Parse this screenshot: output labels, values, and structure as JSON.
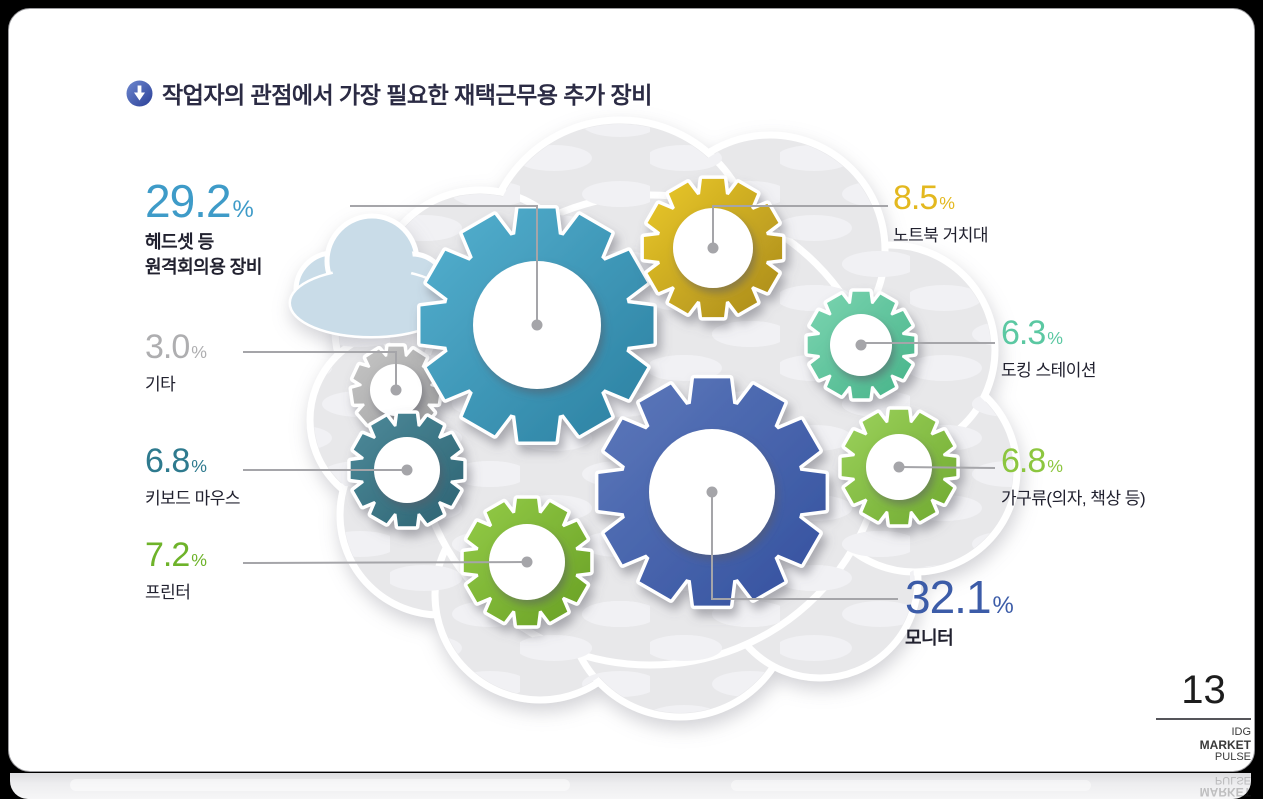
{
  "page": {
    "number": "13",
    "title": "작업자의 관점에서 가장 필요한 재택근무용 추가 장비",
    "brand_lines": [
      "IDG",
      "MARKET",
      "PULSE"
    ],
    "title_color": "#2b2b44",
    "title_icon": "down-arrow-in-circle"
  },
  "colors": {
    "connector": "#a5a5a9",
    "cloud_fill": "#e8e8ea",
    "cloud_pattern": "#f1f1f4",
    "cloud_outline": "#ffffff",
    "small_cloud_fill": "#c9dce8",
    "card_background": "#ffffff"
  },
  "chart_data": {
    "type": "pictorial-gears",
    "title": "작업자의 관점에서 가장 필요한 재택근무용 추가 장비",
    "unit": "%",
    "legend_position": "callouts-around-cloud",
    "items": [
      {
        "label": "헤드셋 등 원격회의용 장비",
        "label_lines": [
          "헤드셋 등",
          "원격회의용 장비"
        ],
        "value": 29.2,
        "value_display": "29.2",
        "color": "#3e9bc8",
        "gear_color": "#55b1d0",
        "gear_dark": "#2a7fa0",
        "emphasis": true
      },
      {
        "label": "기타",
        "value": 3.0,
        "value_display": "3.0",
        "color": "#aeaeb0",
        "gear_color": "#c6c6c6",
        "gear_dark": "#9e9e9e",
        "emphasis": false
      },
      {
        "label": "키보드 마우스",
        "value": 6.8,
        "value_display": "6.8",
        "color": "#2e7a8e",
        "gear_color": "#4d8a9a",
        "gear_dark": "#2d6372",
        "emphasis": false
      },
      {
        "label": "프린터",
        "value": 7.2,
        "value_display": "7.2",
        "color": "#6eb32a",
        "gear_color": "#94cc48",
        "gear_dark": "#689f24",
        "emphasis": false
      },
      {
        "label": "노트북 거치대",
        "value": 8.5,
        "value_display": "8.5",
        "color": "#e3b81f",
        "gear_color": "#ecca28",
        "gear_dark": "#a8891c",
        "emphasis": false
      },
      {
        "label": "도킹 스테이션",
        "value": 6.3,
        "value_display": "6.3",
        "color": "#5bc8a2",
        "gear_color": "#7cd5b1",
        "gear_dark": "#46b389",
        "emphasis": false
      },
      {
        "label": "가구류(의자, 책상 등)",
        "value": 6.8,
        "value_display": "6.8",
        "color": "#8cc63f",
        "gear_color": "#9cd25c",
        "gear_dark": "#6fa92f",
        "emphasis": false
      },
      {
        "label": "모니터",
        "value": 32.1,
        "value_display": "32.1",
        "color": "#3c5ca8",
        "gear_color": "#5d79bb",
        "gear_dark": "#33509e",
        "emphasis": true
      }
    ]
  }
}
